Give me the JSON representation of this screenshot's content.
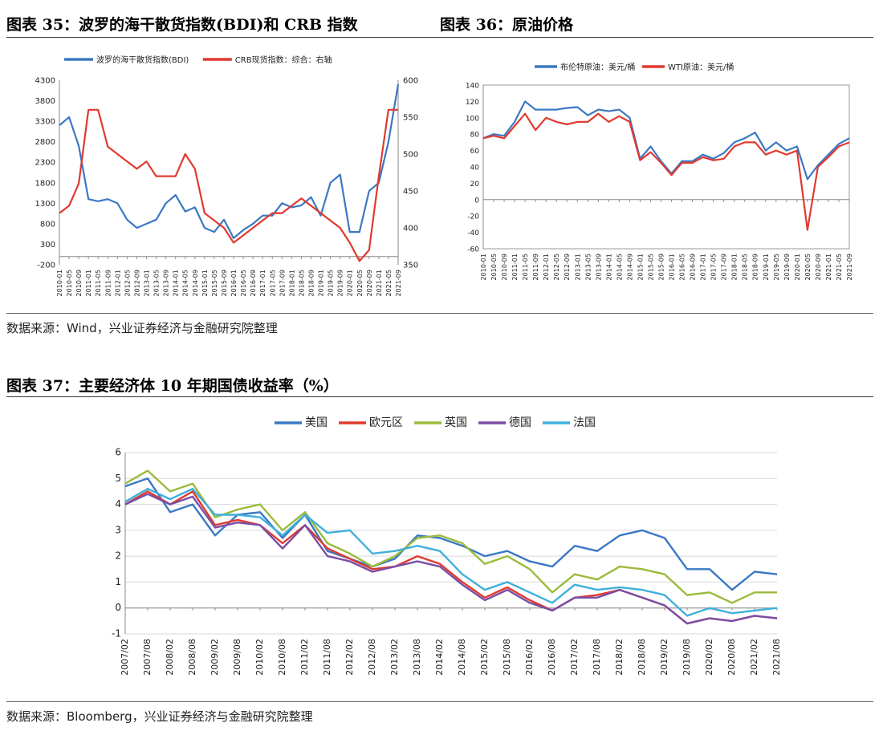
{
  "titles": {
    "c35": "图表 35：波罗的海干散货指数(BDI)和 CRB 指数",
    "c36": "图表 36：原油价格",
    "c37": "图表 37：主要经济体 10 年期国债收益率（%）"
  },
  "sources": {
    "top": "数据来源：Wind，兴业证券经济与金融研究院整理",
    "bottom": "数据来源：Bloomberg，兴业证券经济与金融研究院整理"
  },
  "colors": {
    "blue": "#3B78C4",
    "red": "#E03A2F",
    "green": "#9BBB3C",
    "purple": "#7A4EA6",
    "cyan": "#3FB0DC"
  },
  "chart_data": [
    {
      "id": "bdi_crb",
      "type": "line",
      "title": "图表 35：波罗的海干散货指数(BDI)和 CRB 指数",
      "x": [
        "2010-01",
        "2010-05",
        "2010-09",
        "2011-01",
        "2011-05",
        "2011-09",
        "2012-01",
        "2012-05",
        "2012-09",
        "2013-01",
        "2013-05",
        "2013-09",
        "2014-01",
        "2014-05",
        "2014-09",
        "2015-01",
        "2015-05",
        "2015-09",
        "2016-01",
        "2016-05",
        "2016-09",
        "2017-01",
        "2017-05",
        "2017-09",
        "2018-01",
        "2018-05",
        "2018-09",
        "2019-01",
        "2019-05",
        "2019-09",
        "2020-01",
        "2020-05",
        "2020-09",
        "2021-01",
        "2021-05",
        "2021-09"
      ],
      "x_ticks": [
        "2010-01",
        "2010-05",
        "2010-09",
        "2011-01",
        "2011-05",
        "2011-09",
        "2012-01",
        "2012-05",
        "2012-09",
        "2013-01",
        "2013-05",
        "2013-09",
        "2014-01",
        "2014-05",
        "2014-09",
        "2015-01",
        "2015-05",
        "2015-09",
        "2016-01",
        "2016-05",
        "2016-09",
        "2017-01",
        "2017-05",
        "2017-09",
        "2018-01",
        "2018-05",
        "2018-09",
        "2019-01",
        "2019-05",
        "2019-09",
        "2020-01",
        "2020-05",
        "2020-09",
        "2021-01",
        "2021-05",
        "2021-09"
      ],
      "y_left": {
        "lim": [
          -200,
          4300
        ],
        "ticks": [
          -200,
          300,
          800,
          1300,
          1800,
          2300,
          2800,
          3300,
          3800,
          4300
        ]
      },
      "y_right": {
        "lim": [
          350,
          600
        ],
        "ticks": [
          350,
          400,
          450,
          500,
          550,
          600
        ]
      },
      "legend_position": "top",
      "series": [
        {
          "name": "波罗的海干散货指数(BDI)",
          "axis": "left",
          "color": "blue",
          "values": [
            3200,
            3400,
            2700,
            1400,
            1350,
            1400,
            1300,
            900,
            700,
            800,
            900,
            1300,
            1500,
            1100,
            1200,
            700,
            600,
            900,
            450,
            650,
            800,
            1000,
            1000,
            1300,
            1200,
            1250,
            1450,
            1000,
            1800,
            2000,
            600,
            600,
            1600,
            1800,
            2800,
            4200
          ]
        },
        {
          "name": "CRB现货指数：综合：右轴",
          "axis": "right",
          "color": "red",
          "values": [
            420,
            430,
            460,
            560,
            560,
            510,
            500,
            490,
            480,
            490,
            470,
            470,
            470,
            500,
            480,
            420,
            410,
            400,
            380,
            390,
            400,
            410,
            420,
            420,
            430,
            440,
            430,
            420,
            410,
            400,
            380,
            355,
            370,
            470,
            560,
            560
          ]
        }
      ]
    },
    {
      "id": "oil",
      "type": "line",
      "title": "图表 36：原油价格",
      "x": [
        "2010-01",
        "2010-05",
        "2010-09",
        "2011-01",
        "2011-05",
        "2011-09",
        "2012-01",
        "2012-05",
        "2012-09",
        "2013-01",
        "2013-05",
        "2013-09",
        "2014-01",
        "2014-05",
        "2014-09",
        "2015-01",
        "2015-05",
        "2015-09",
        "2016-01",
        "2016-05",
        "2016-09",
        "2017-01",
        "2017-05",
        "2017-09",
        "2018-01",
        "2018-05",
        "2018-09",
        "2019-01",
        "2019-05",
        "2019-09",
        "2020-01",
        "2020-05",
        "2020-09",
        "2021-01",
        "2021-05",
        "2021-09"
      ],
      "x_ticks": [
        "2010-01",
        "2010-05",
        "2010-09",
        "2011-01",
        "2011-05",
        "2011-09",
        "2012-01",
        "2012-05",
        "2012-09",
        "2013-01",
        "2013-05",
        "2013-09",
        "2014-01",
        "2014-05",
        "2014-09",
        "2015-01",
        "2015-05",
        "2015-09",
        "2016-01",
        "2016-05",
        "2016-09",
        "2017-01",
        "2017-05",
        "2017-09",
        "2018-01",
        "2018-05",
        "2018-09",
        "2019-01",
        "2019-05",
        "2019-09",
        "2020-01",
        "2020-05",
        "2020-09",
        "2021-01",
        "2021-05",
        "2021-09"
      ],
      "ylim": [
        -60,
        140
      ],
      "y_ticks": [
        -60,
        -40,
        -20,
        0,
        20,
        40,
        60,
        80,
        100,
        120,
        140
      ],
      "legend_position": "top",
      "series": [
        {
          "name": "布伦特原油：美元/桶",
          "color": "blue",
          "values": [
            75,
            80,
            78,
            95,
            120,
            110,
            110,
            110,
            112,
            113,
            103,
            110,
            108,
            110,
            100,
            50,
            65,
            47,
            32,
            47,
            47,
            55,
            50,
            57,
            70,
            75,
            82,
            60,
            70,
            60,
            65,
            25,
            42,
            55,
            68,
            75
          ]
        },
        {
          "name": "WTI原油：美元/桶",
          "color": "red",
          "values": [
            75,
            78,
            75,
            90,
            105,
            85,
            100,
            95,
            92,
            95,
            95,
            105,
            95,
            102,
            95,
            48,
            58,
            45,
            30,
            45,
            45,
            52,
            48,
            50,
            65,
            70,
            70,
            55,
            60,
            55,
            60,
            -37,
            40,
            52,
            65,
            70
          ]
        }
      ]
    },
    {
      "id": "yields",
      "type": "line",
      "title": "图表 37：主要经济体 10 年期国债收益率（%）",
      "x": [
        "2007/02",
        "2007/08",
        "2008/02",
        "2008/08",
        "2009/02",
        "2009/08",
        "2010/02",
        "2010/08",
        "2011/02",
        "2011/08",
        "2012/02",
        "2012/08",
        "2013/02",
        "2013/08",
        "2014/02",
        "2014/08",
        "2015/02",
        "2015/08",
        "2016/02",
        "2016/08",
        "2017/02",
        "2017/08",
        "2018/02",
        "2018/08",
        "2019/02",
        "2019/08",
        "2020/02",
        "2020/08",
        "2021/02",
        "2021/08"
      ],
      "x_ticks": [
        "2007/02",
        "2007/08",
        "2008/02",
        "2008/08",
        "2009/02",
        "2009/08",
        "2010/02",
        "2010/08",
        "2011/02",
        "2011/08",
        "2012/02",
        "2012/08",
        "2013/02",
        "2013/08",
        "2014/02",
        "2014/08",
        "2015/02",
        "2015/08",
        "2016/02",
        "2016/08",
        "2017/02",
        "2017/08",
        "2018/02",
        "2018/08",
        "2019/02",
        "2019/08",
        "2020/02",
        "2020/08",
        "2021/02",
        "2021/08"
      ],
      "ylim": [
        -1,
        6
      ],
      "y_ticks": [
        -1,
        0,
        1,
        2,
        3,
        4,
        5,
        6
      ],
      "legend_position": "top",
      "series": [
        {
          "name": "美国",
          "color": "blue",
          "values": [
            4.7,
            5.0,
            3.7,
            4.0,
            2.8,
            3.6,
            3.7,
            2.7,
            3.6,
            2.2,
            1.9,
            1.6,
            1.9,
            2.8,
            2.7,
            2.4,
            2.0,
            2.2,
            1.8,
            1.6,
            2.4,
            2.2,
            2.8,
            3.0,
            2.7,
            1.5,
            1.5,
            0.7,
            1.4,
            1.3
          ]
        },
        {
          "name": "欧元区",
          "color": "red",
          "values": [
            4.0,
            4.5,
            4.0,
            4.5,
            3.2,
            3.4,
            3.2,
            2.5,
            3.2,
            2.3,
            1.9,
            1.5,
            1.6,
            2.0,
            1.7,
            1.0,
            0.4,
            0.8,
            0.3,
            -0.1,
            0.4,
            0.5,
            0.7,
            0.4,
            0.1,
            -0.6,
            -0.4,
            -0.5,
            -0.3,
            -0.4
          ]
        },
        {
          "name": "英国",
          "color": "green",
          "values": [
            4.8,
            5.3,
            4.5,
            4.8,
            3.5,
            3.8,
            4.0,
            3.0,
            3.7,
            2.5,
            2.1,
            1.6,
            2.0,
            2.7,
            2.8,
            2.5,
            1.7,
            2.0,
            1.5,
            0.6,
            1.3,
            1.1,
            1.6,
            1.5,
            1.3,
            0.5,
            0.6,
            0.2,
            0.6,
            0.6
          ]
        },
        {
          "name": "德国",
          "color": "purple",
          "values": [
            4.0,
            4.4,
            4.0,
            4.3,
            3.1,
            3.3,
            3.2,
            2.3,
            3.2,
            2.0,
            1.8,
            1.4,
            1.6,
            1.8,
            1.6,
            0.9,
            0.3,
            0.7,
            0.2,
            -0.1,
            0.4,
            0.4,
            0.7,
            0.4,
            0.1,
            -0.6,
            -0.4,
            -0.5,
            -0.3,
            -0.4
          ]
        },
        {
          "name": "法国",
          "color": "cyan",
          "values": [
            4.1,
            4.6,
            4.2,
            4.6,
            3.6,
            3.6,
            3.5,
            2.8,
            3.6,
            2.9,
            3.0,
            2.1,
            2.2,
            2.4,
            2.2,
            1.3,
            0.7,
            1.0,
            0.6,
            0.2,
            0.9,
            0.7,
            0.8,
            0.7,
            0.5,
            -0.3,
            0.0,
            -0.2,
            -0.1,
            0.0
          ]
        }
      ]
    }
  ]
}
